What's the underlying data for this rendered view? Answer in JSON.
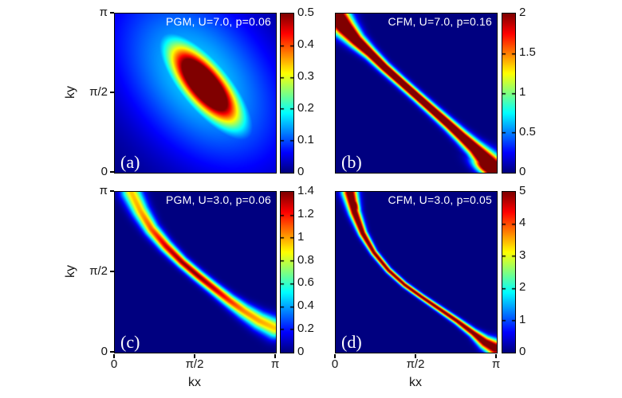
{
  "figure": {
    "xlabel": "kx",
    "ylabel": "ky",
    "x_tick_labels": [
      "0",
      "π/2",
      "π"
    ],
    "y_tick_labels": [
      "0",
      "π/2",
      "π"
    ],
    "background": "#ffffff",
    "colormap": "jet",
    "colormap_low_hex": "#000080",
    "colormap_high_hex": "#800000",
    "title_text_color": "#ffffff"
  },
  "chart_data": [
    {
      "type": "heatmap",
      "panel_label": "(a)",
      "title": "PGM, U=7.0, p=0.06",
      "xlabel": "kx",
      "ylabel": "ky",
      "x_range": [
        "0",
        "π"
      ],
      "y_range": [
        "0",
        "π"
      ],
      "colorbar": {
        "vmin": 0,
        "vmax": 0.5,
        "tick_labels": [
          "0",
          "0.1",
          "0.2",
          "0.3",
          "0.4",
          "0.5"
        ]
      },
      "features": [
        {
          "type": "gaussian_blob",
          "cx": 0.555,
          "cy": 0.555,
          "angle_deg": -50,
          "sigma_major": 0.21,
          "sigma_minor": 0.082,
          "amp": 0.78
        },
        {
          "type": "gaussian_blob",
          "cx": 0.52,
          "cy": 0.6,
          "angle_deg": -50,
          "sigma_major": 0.46,
          "sigma_minor": 0.3,
          "amp": 0.17
        }
      ]
    },
    {
      "type": "heatmap",
      "panel_label": "(b)",
      "title": "CFM, U=7.0, p=0.16",
      "xlabel": "kx",
      "ylabel": "ky",
      "x_range": [
        "0",
        "π"
      ],
      "y_range": [
        "0",
        "π"
      ],
      "colorbar": {
        "vmin": 0,
        "vmax": 2,
        "tick_labels": [
          "0",
          "0.5",
          "1",
          "1.5",
          "2"
        ]
      },
      "features": [
        {
          "type": "ridge",
          "points": [
            [
              0.0,
              0.985,
              0.052,
              2.9
            ],
            [
              0.055,
              0.915,
              0.042,
              2.9
            ],
            [
              0.125,
              0.835,
              0.032,
              2.7
            ],
            [
              0.21,
              0.755,
              0.025,
              2.6
            ],
            [
              0.3,
              0.665,
              0.022,
              2.6
            ],
            [
              0.4,
              0.575,
              0.021,
              2.6
            ],
            [
              0.5,
              0.485,
              0.021,
              2.6
            ],
            [
              0.6,
              0.395,
              0.022,
              2.6
            ],
            [
              0.7,
              0.305,
              0.024,
              2.6
            ],
            [
              0.78,
              0.23,
              0.027,
              2.6
            ],
            [
              0.86,
              0.155,
              0.032,
              2.7
            ],
            [
              0.925,
              0.085,
              0.042,
              2.9
            ],
            [
              0.985,
              0.02,
              0.05,
              3.0
            ]
          ]
        },
        {
          "type": "gaussian_blob",
          "cx": 0.95,
          "cy": 0.04,
          "angle_deg": -30,
          "sigma_major": 0.07,
          "sigma_minor": 0.035,
          "amp": 3.0
        }
      ]
    },
    {
      "type": "heatmap",
      "panel_label": "(c)",
      "title": "PGM, U=3.0, p=0.06",
      "xlabel": "kx",
      "ylabel": "ky",
      "x_range": [
        "0",
        "π"
      ],
      "y_range": [
        "0",
        "π"
      ],
      "colorbar": {
        "vmin": 0,
        "vmax": 1.4,
        "tick_labels": [
          "0",
          "0.2",
          "0.4",
          "0.6",
          "0.8",
          "1",
          "1.2",
          "1.4"
        ]
      },
      "features": [
        {
          "type": "ridge",
          "points": [
            [
              0.1,
              1.0,
              0.042,
              0.95
            ],
            [
              0.155,
              0.885,
              0.036,
              1.0
            ],
            [
              0.225,
              0.77,
              0.03,
              1.12
            ],
            [
              0.315,
              0.665,
              0.026,
              1.3
            ],
            [
              0.415,
              0.565,
              0.023,
              1.38
            ],
            [
              0.515,
              0.48,
              0.023,
              1.4
            ],
            [
              0.615,
              0.4,
              0.024,
              1.32
            ],
            [
              0.71,
              0.325,
              0.027,
              1.18
            ],
            [
              0.8,
              0.26,
              0.032,
              1.05
            ],
            [
              0.895,
              0.2,
              0.038,
              1.0
            ],
            [
              0.99,
              0.155,
              0.044,
              0.95
            ]
          ]
        }
      ]
    },
    {
      "type": "heatmap",
      "panel_label": "(d)",
      "title": "CFM, U=3.0, p=0.05",
      "xlabel": "kx",
      "ylabel": "ky",
      "x_range": [
        "0",
        "π"
      ],
      "y_range": [
        "0",
        "π"
      ],
      "colorbar": {
        "vmin": 0,
        "vmax": 5,
        "tick_labels": [
          "0",
          "1",
          "2",
          "3",
          "4",
          "5"
        ]
      },
      "features": [
        {
          "type": "ridge",
          "points": [
            [
              0.085,
              1.0,
              0.032,
              5.8
            ],
            [
              0.115,
              0.875,
              0.024,
              5.6
            ],
            [
              0.165,
              0.745,
              0.018,
              5.4
            ],
            [
              0.235,
              0.625,
              0.014,
              5.2
            ],
            [
              0.325,
              0.515,
              0.0125,
              5.2
            ],
            [
              0.425,
              0.425,
              0.012,
              5.2
            ],
            [
              0.53,
              0.35,
              0.012,
              5.2
            ],
            [
              0.64,
              0.275,
              0.013,
              5.2
            ],
            [
              0.75,
              0.2,
              0.0145,
              5.2
            ],
            [
              0.85,
              0.125,
              0.018,
              5.4
            ],
            [
              0.925,
              0.065,
              0.027,
              5.8
            ],
            [
              0.99,
              0.03,
              0.035,
              5.8
            ]
          ]
        },
        {
          "type": "gaussian_blob",
          "cx": 0.97,
          "cy": 0.045,
          "angle_deg": -25,
          "sigma_major": 0.055,
          "sigma_minor": 0.025,
          "amp": 5.8
        },
        {
          "type": "gaussian_blob",
          "cx": 0.115,
          "cy": 0.92,
          "angle_deg": -75,
          "sigma_major": 0.05,
          "sigma_minor": 0.02,
          "amp": 5.6
        }
      ]
    }
  ]
}
